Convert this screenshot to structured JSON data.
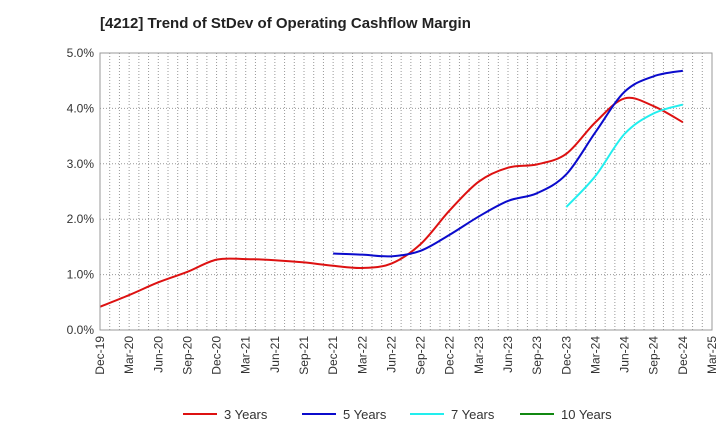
{
  "chart_data": {
    "type": "line",
    "title": "[4212]  Trend of StDev of Operating Cashflow Margin",
    "xlabel": "",
    "ylabel": "",
    "ylim": [
      0,
      5
    ],
    "y_unit": "%",
    "y_ticks": [
      "0.0%",
      "1.0%",
      "2.0%",
      "3.0%",
      "4.0%",
      "5.0%"
    ],
    "x_ticks": [
      "Dec-19",
      "Mar-20",
      "Jun-20",
      "Sep-20",
      "Dec-20",
      "Mar-21",
      "Jun-21",
      "Sep-21",
      "Dec-21",
      "Mar-22",
      "Jun-22",
      "Sep-22",
      "Dec-22",
      "Mar-23",
      "Jun-23",
      "Sep-23",
      "Dec-23",
      "Mar-24",
      "Jun-24",
      "Sep-24",
      "Dec-24",
      "Mar-25"
    ],
    "grid": true,
    "legend_position": "bottom",
    "series": [
      {
        "name": "3 Years",
        "color": "#dd1111",
        "values": [
          0.42,
          0.63,
          0.86,
          1.05,
          1.27,
          1.28,
          1.26,
          1.22,
          1.16,
          1.12,
          1.2,
          1.55,
          2.16,
          2.68,
          2.93,
          2.99,
          3.18,
          3.75,
          4.18,
          4.04,
          3.75,
          null
        ]
      },
      {
        "name": "5 Years",
        "color": "#0b0bcc",
        "values": [
          null,
          null,
          null,
          null,
          null,
          null,
          null,
          null,
          1.38,
          1.36,
          1.33,
          1.43,
          1.72,
          2.05,
          2.33,
          2.47,
          2.81,
          3.57,
          4.3,
          4.58,
          4.68,
          null
        ]
      },
      {
        "name": "7 Years",
        "color": "#22eeee",
        "values": [
          null,
          null,
          null,
          null,
          null,
          null,
          null,
          null,
          null,
          null,
          null,
          null,
          null,
          null,
          null,
          null,
          2.22,
          2.78,
          3.54,
          3.91,
          4.07,
          null
        ]
      },
      {
        "name": "10 Years",
        "color": "#118811",
        "values": [
          null,
          null,
          null,
          null,
          null,
          null,
          null,
          null,
          null,
          null,
          null,
          null,
          null,
          null,
          null,
          null,
          null,
          null,
          null,
          null,
          null,
          null
        ]
      }
    ]
  }
}
